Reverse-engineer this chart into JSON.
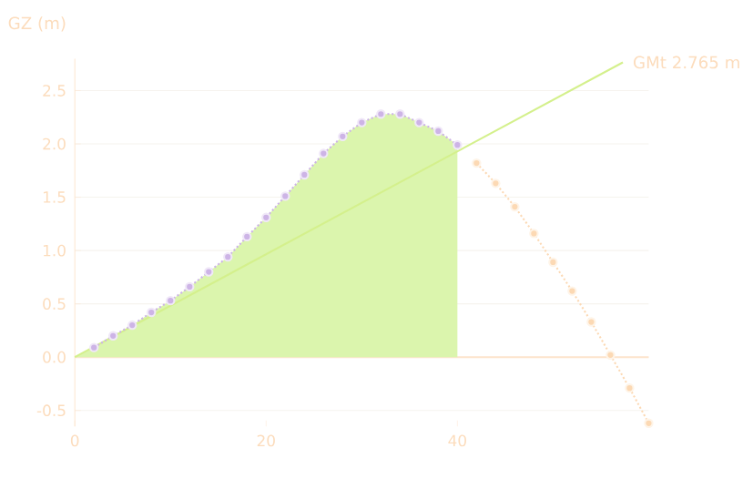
{
  "chart_data": {
    "type": "line",
    "ylabel": "GZ (m)",
    "xlim": [
      0,
      60
    ],
    "ylim": [
      -0.65,
      2.8
    ],
    "xticks": [
      0,
      20,
      40
    ],
    "yticks": [
      {
        "value": -0.5,
        "label": "-0.5"
      },
      {
        "value": 0,
        "label": "0.0"
      },
      {
        "value": 0.5,
        "label": "0.5"
      },
      {
        "value": 1,
        "label": "1.0"
      },
      {
        "value": 1.5,
        "label": "1.5"
      },
      {
        "value": 2,
        "label": "2.0"
      },
      {
        "value": 2.5,
        "label": "2.5"
      }
    ],
    "grid": "y",
    "annotations": [
      {
        "text": "GMt 2.765 m",
        "x": 57.3,
        "y": 2.765
      }
    ],
    "ref_lines": [
      {
        "axis": "y",
        "value": 0,
        "color": "#fde4cc"
      }
    ],
    "series": [
      {
        "type": "area",
        "color": "#dbf5ad",
        "x": [
          0,
          2,
          4,
          6,
          8,
          10,
          12,
          14,
          16,
          18,
          20,
          22,
          24,
          26,
          28,
          30,
          32,
          34,
          36,
          38,
          40
        ],
        "values": [
          0,
          0.09,
          0.2,
          0.3,
          0.42,
          0.53,
          0.66,
          0.8,
          0.94,
          1.13,
          1.31,
          1.51,
          1.71,
          1.91,
          2.07,
          2.2,
          2.28,
          2.28,
          2.2,
          2.12,
          1.99
        ]
      },
      {
        "color": "#d4f08c",
        "line_style": "solid",
        "x": [
          0,
          57.3
        ],
        "values": [
          0,
          2.765
        ]
      },
      {
        "color": "#cdb4e6",
        "marker": "circle",
        "line_style": "dotted",
        "x": [
          2,
          4,
          6,
          8,
          10,
          12,
          14,
          16,
          18,
          20,
          22,
          24,
          26,
          28,
          30,
          32,
          34,
          36,
          38,
          40
        ],
        "values": [
          0.09,
          0.2,
          0.3,
          0.42,
          0.53,
          0.66,
          0.8,
          0.94,
          1.13,
          1.31,
          1.51,
          1.71,
          1.91,
          2.07,
          2.2,
          2.28,
          2.28,
          2.2,
          2.12,
          1.99
        ]
      },
      {
        "color": "#fcd9b4",
        "marker": "circle",
        "line_style": "dotted",
        "x": [
          42,
          44,
          46,
          48,
          50,
          52,
          54,
          56,
          58,
          60
        ],
        "values": [
          1.82,
          1.63,
          1.41,
          1.16,
          0.89,
          0.62,
          0.33,
          0.02,
          -0.29,
          -0.62
        ]
      }
    ]
  }
}
